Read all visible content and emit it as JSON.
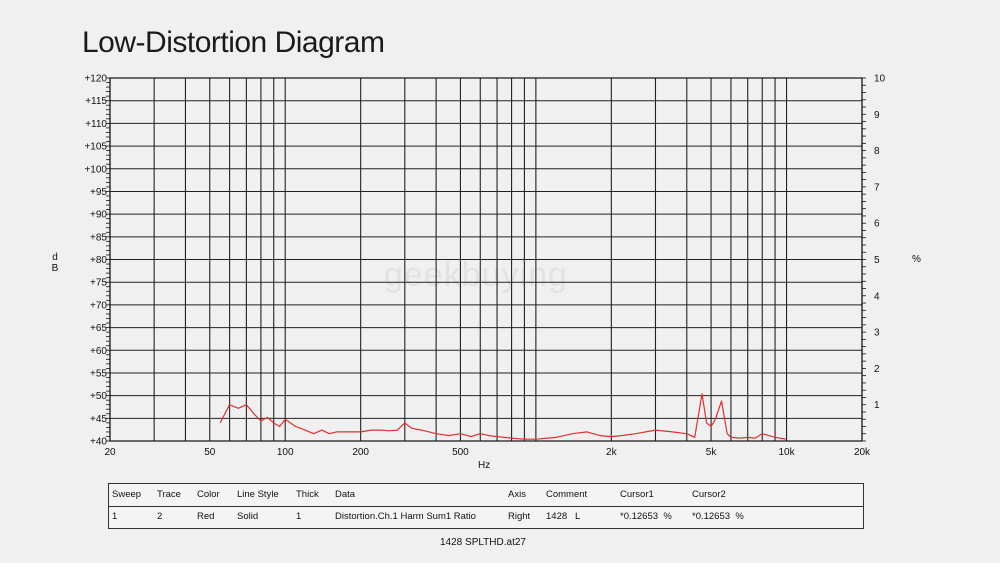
{
  "header": {
    "title": "Low-Distortion Diagram"
  },
  "watermark": "geekbuying",
  "chart_data": {
    "type": "line",
    "title": "Low-Distortion Diagram",
    "xlabel": "Hz",
    "ylabel_left": "d\nB",
    "ylabel_right": "%",
    "xscale": "log",
    "xlim": [
      20,
      20000
    ],
    "ylim_left": [
      40,
      120
    ],
    "ylim_right": [
      0,
      10
    ],
    "grid": true,
    "x_ticks": [
      {
        "v": 20,
        "label": "20"
      },
      {
        "v": 50,
        "label": "50"
      },
      {
        "v": 100,
        "label": "100"
      },
      {
        "v": 200,
        "label": "200"
      },
      {
        "v": 500,
        "label": "500"
      },
      {
        "v": 2000,
        "label": "2k"
      },
      {
        "v": 5000,
        "label": "5k"
      },
      {
        "v": 10000,
        "label": "10k"
      },
      {
        "v": 20000,
        "label": "20k"
      }
    ],
    "y_left_ticks": [
      "+40",
      "+45",
      "+50",
      "+55",
      "+60",
      "+65",
      "+70",
      "+75",
      "+80",
      "+85",
      "+90",
      "+95",
      "+100",
      "+105",
      "+110",
      "+115",
      "+120"
    ],
    "y_right_ticks": [
      "1",
      "2",
      "3",
      "4",
      "5",
      "6",
      "7",
      "8",
      "9",
      "10"
    ],
    "series": [
      {
        "axis": "Right",
        "color": "#e03030",
        "x": [
          55,
          60,
          65,
          70,
          75,
          80,
          85,
          90,
          95,
          100,
          110,
          120,
          130,
          140,
          150,
          160,
          180,
          200,
          220,
          240,
          260,
          280,
          300,
          320,
          350,
          400,
          450,
          500,
          550,
          600,
          650,
          700,
          800,
          900,
          1000,
          1200,
          1400,
          1600,
          1800,
          2000,
          2200,
          2500,
          3000,
          3500,
          4000,
          4300,
          4600,
          4800,
          5000,
          5200,
          5500,
          5800,
          6000,
          6500,
          7000,
          7500,
          8000,
          8500,
          9000,
          10000
        ],
        "y": [
          0.5,
          1.0,
          0.9,
          1.0,
          0.75,
          0.55,
          0.65,
          0.5,
          0.4,
          0.6,
          0.4,
          0.3,
          0.2,
          0.3,
          0.2,
          0.25,
          0.25,
          0.25,
          0.3,
          0.3,
          0.28,
          0.3,
          0.5,
          0.35,
          0.3,
          0.2,
          0.15,
          0.2,
          0.12,
          0.2,
          0.15,
          0.12,
          0.08,
          0.05,
          0.05,
          0.1,
          0.2,
          0.25,
          0.15,
          0.12,
          0.15,
          0.2,
          0.3,
          0.25,
          0.2,
          0.1,
          1.3,
          0.5,
          0.4,
          0.6,
          1.1,
          0.2,
          0.1,
          0.08,
          0.1,
          0.08,
          0.2,
          0.15,
          0.1,
          0.05
        ]
      }
    ]
  },
  "legend": {
    "headers": [
      "Sweep",
      "Trace",
      "Color",
      "Line Style",
      "Thick",
      "Data",
      "Axis",
      "Comment",
      "Cursor1",
      "Cursor2"
    ],
    "row": [
      "1",
      "2",
      "Red",
      "Solid",
      "1",
      "Distortion.Ch.1 Harm Sum1 Ratio",
      "Right",
      "1428   L",
      "*0.12653  %",
      "*0.12653  %"
    ]
  },
  "footer": "1428 SPLTHD.at27"
}
